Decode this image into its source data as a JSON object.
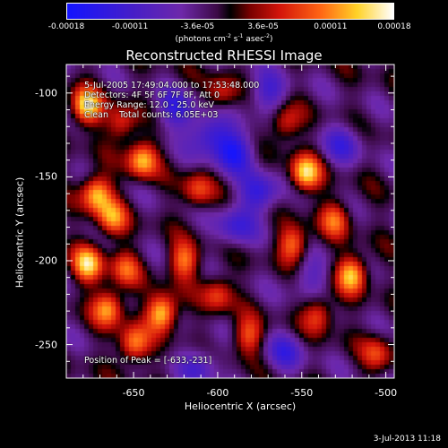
{
  "chart_data": {
    "type": "heatmap",
    "title": "Reconstructed RHESSI Image",
    "xlabel": "Heliocentric X (arcsec)",
    "ylabel": "Heliocentric Y (arcsec)",
    "xlim": [
      -690,
      -495
    ],
    "ylim": [
      -270,
      -83
    ],
    "x_ticks": [
      "-650",
      "-600",
      "-550",
      "-500"
    ],
    "x_tick_values": [
      -650,
      -600,
      -550,
      -500
    ],
    "y_ticks": [
      "-100",
      "-150",
      "-200",
      "-250"
    ],
    "y_tick_values": [
      -100,
      -150,
      -200,
      -250
    ],
    "colorbar": {
      "ticks": [
        "-0.00018",
        "-0.00011",
        "-3.6e-05",
        "3.6e-05",
        "0.00011",
        "0.00018"
      ],
      "tick_values": [
        -0.00018,
        -0.00011,
        -3.6e-05,
        3.6e-05,
        0.00011,
        0.00018
      ],
      "units_text": "(photons cm",
      "units_exp1": "-2",
      "units_mid": " s",
      "units_exp2": "-1",
      "units_mid2": " asec",
      "units_exp3": "-2",
      "units_end": ")",
      "colormap": "blue-purple-black-red-orange-yellow-white"
    },
    "annotations": [
      " 5-Jul-2005 17:49:04.000 to 17:53:48.000",
      "Detectors: 4F 5F 6F 7F 8F, Att 0",
      "Energy Range: 12.0 - 25.0 keV",
      "Clean    Total counts: 6.05E+03",
      "Position of Peak = [-633,-231]"
    ],
    "peak": {
      "x": -633,
      "y": -231
    },
    "bright_sources": [
      {
        "x": -678,
        "y": -108,
        "amp": 1.0
      },
      {
        "x": -657,
        "y": -118,
        "amp": 0.55
      },
      {
        "x": -645,
        "y": -140,
        "amp": 0.85
      },
      {
        "x": -672,
        "y": -160,
        "amp": 0.9
      },
      {
        "x": -663,
        "y": -175,
        "amp": 0.7
      },
      {
        "x": -677,
        "y": -202,
        "amp": 0.9
      },
      {
        "x": -655,
        "y": -205,
        "amp": 0.55
      },
      {
        "x": -665,
        "y": -228,
        "amp": 0.8
      },
      {
        "x": -633,
        "y": -231,
        "amp": 1.0
      },
      {
        "x": -650,
        "y": -250,
        "amp": 0.75
      },
      {
        "x": -612,
        "y": -158,
        "amp": 0.55
      },
      {
        "x": -620,
        "y": -200,
        "amp": 0.7
      },
      {
        "x": -600,
        "y": -220,
        "amp": 0.55
      },
      {
        "x": -582,
        "y": -245,
        "amp": 0.6
      },
      {
        "x": -560,
        "y": -118,
        "amp": 0.55
      },
      {
        "x": -548,
        "y": -148,
        "amp": 0.95
      },
      {
        "x": -555,
        "y": -190,
        "amp": 0.7
      },
      {
        "x": -530,
        "y": -175,
        "amp": 0.6
      },
      {
        "x": -520,
        "y": -208,
        "amp": 0.9
      },
      {
        "x": -540,
        "y": -232,
        "amp": 0.6
      },
      {
        "x": -505,
        "y": -255,
        "amp": 0.5
      },
      {
        "x": -598,
        "y": -100,
        "amp": 0.45
      }
    ],
    "dark_sources": [
      {
        "x": -625,
        "y": -110,
        "amp": 0.6
      },
      {
        "x": -590,
        "y": -135,
        "amp": 0.8
      },
      {
        "x": -575,
        "y": -160,
        "amp": 0.7
      },
      {
        "x": -605,
        "y": -125,
        "amp": 0.7
      },
      {
        "x": -570,
        "y": -100,
        "amp": 0.55
      },
      {
        "x": -525,
        "y": -130,
        "amp": 0.5
      },
      {
        "x": -590,
        "y": -180,
        "amp": 0.55
      },
      {
        "x": -560,
        "y": -255,
        "amp": 0.5
      },
      {
        "x": -610,
        "y": -262,
        "amp": 0.5
      },
      {
        "x": -545,
        "y": -210,
        "amp": 0.4
      }
    ]
  },
  "footer": {
    "timestamp": "3-Jul-2013 11:18"
  },
  "colors": {
    "foreground": "#ffffff",
    "background": "#000000"
  }
}
